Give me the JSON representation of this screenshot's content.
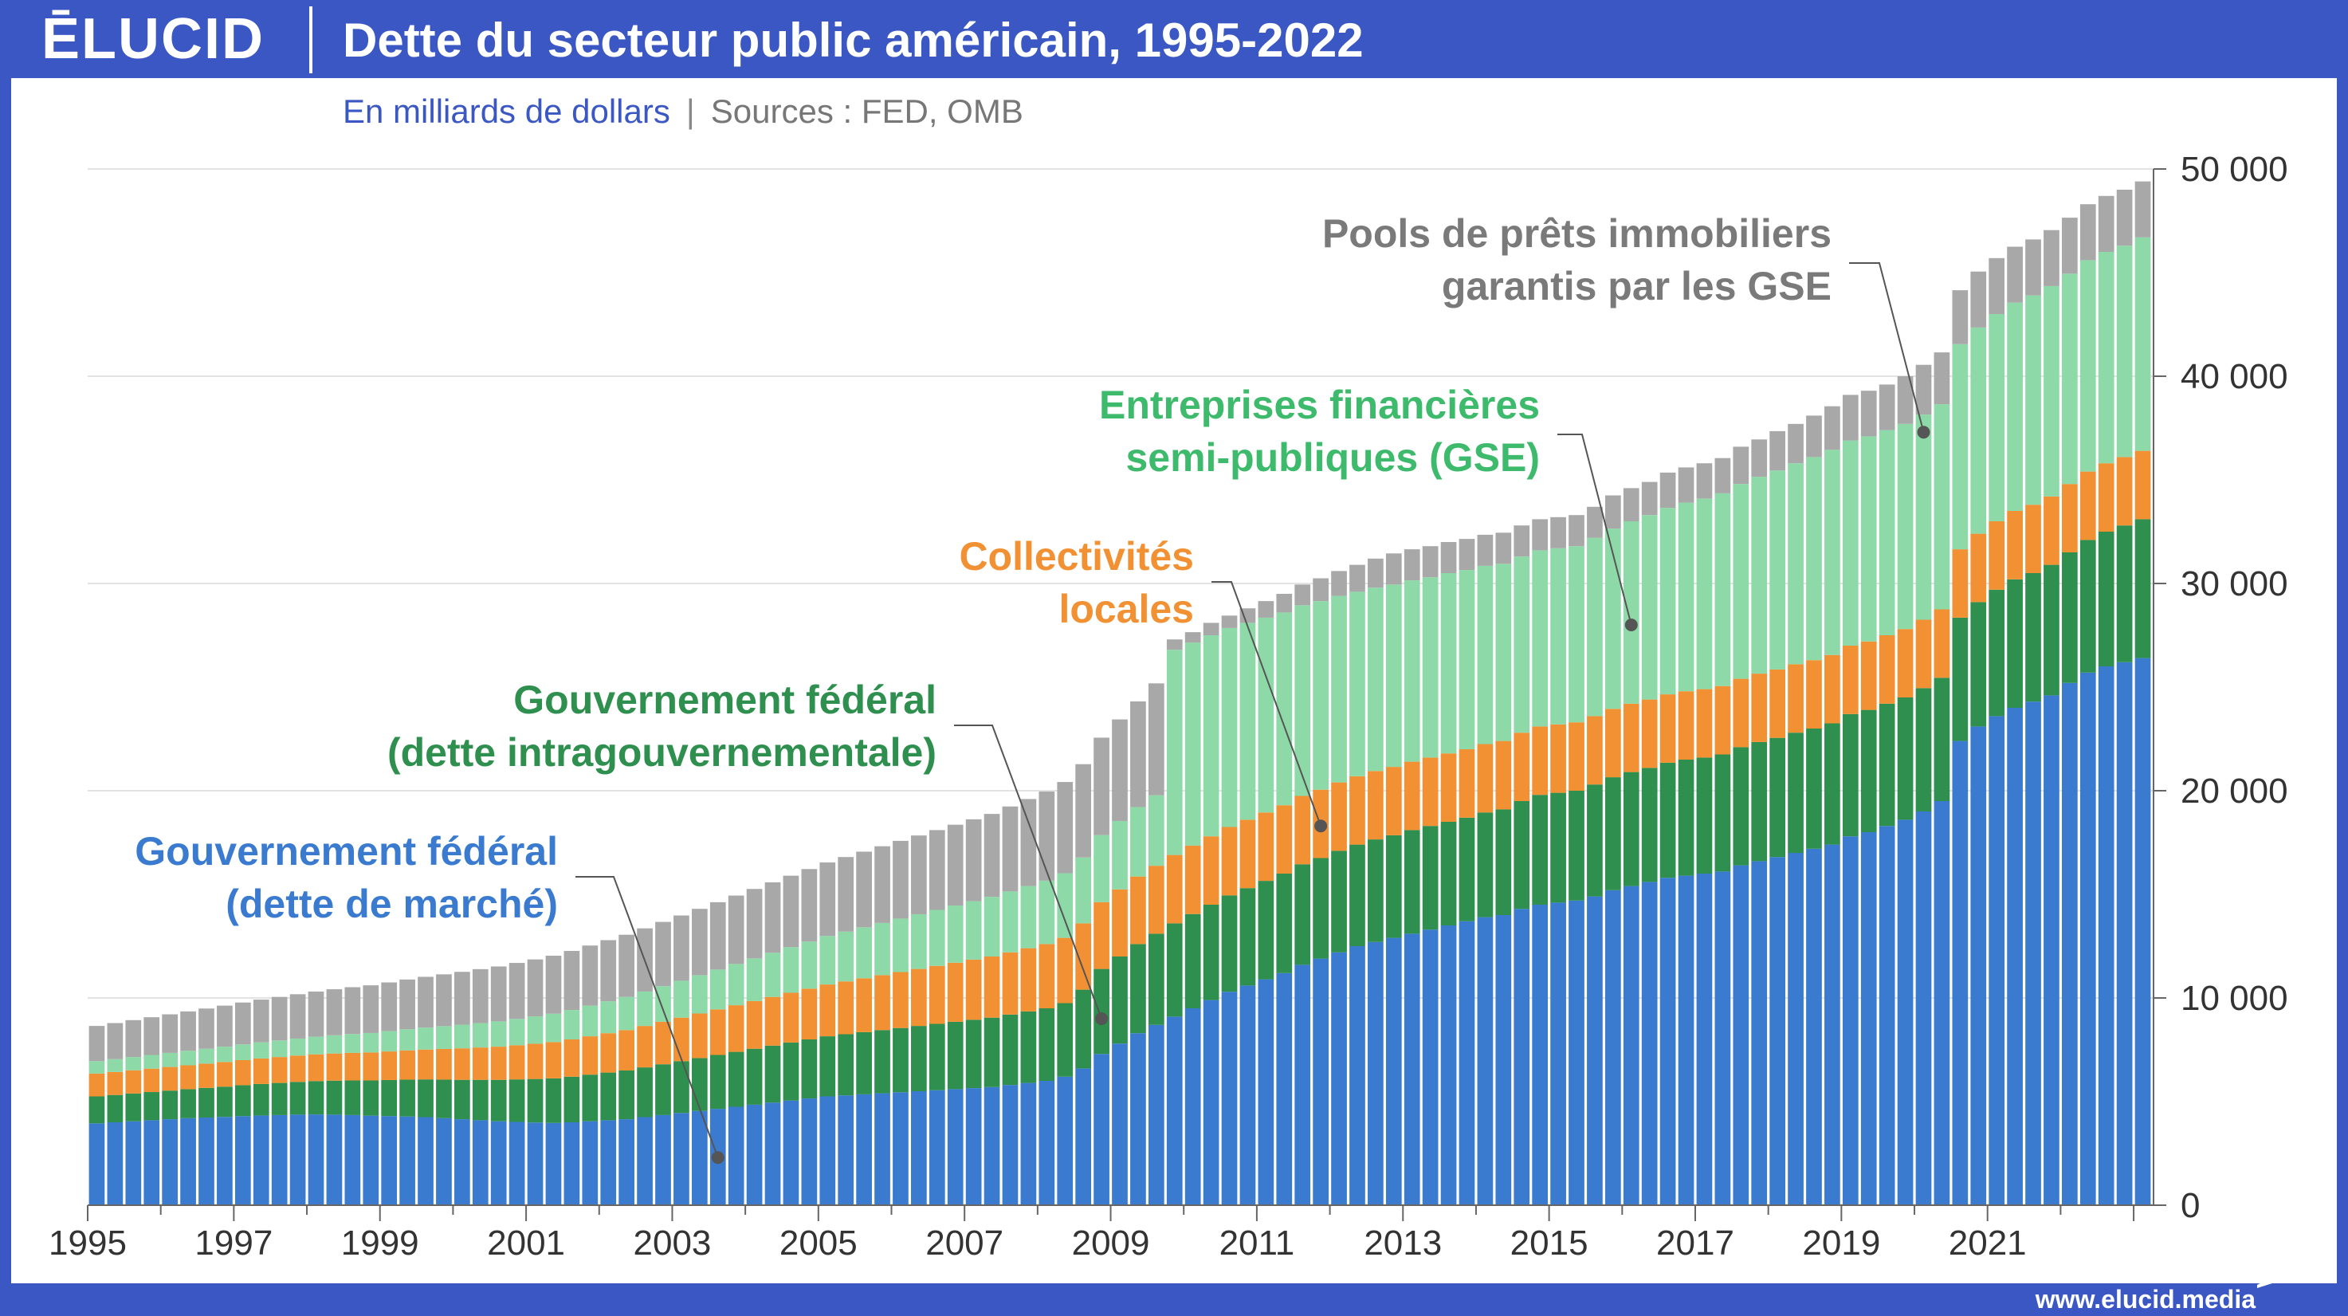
{
  "header": {
    "logo": "ĒLUCID",
    "title": "Dette du secteur public américain, 1995-2022"
  },
  "subtitle": {
    "unit": "En milliards de dollars",
    "separator": "|",
    "sources": "Sources : FED, OMB"
  },
  "footer": {
    "url": "www.elucid.media"
  },
  "colors": {
    "marche": "#3a7bd0",
    "intragouv": "#2e8f4e",
    "locales": "#f29133",
    "gse": "#8ed9a8",
    "pools": "#a8a8a8",
    "annot_marche": "#3a7bd0",
    "annot_intragouv": "#2e8f4e",
    "annot_locales": "#f29133",
    "annot_gse": "#3dba6b",
    "annot_pools": "#7a7a7a"
  },
  "chart_data": {
    "type": "bar",
    "stacked": true,
    "frequency": "quarterly",
    "start_year": 1995,
    "ylim": [
      0,
      50000
    ],
    "yticks": [
      0,
      10000,
      20000,
      30000,
      40000,
      50000
    ],
    "ytick_labels": [
      "0",
      "10 000",
      "20 000",
      "30 000",
      "40 000",
      "50 000"
    ],
    "xtick_labels": [
      "1995",
      "1997",
      "1999",
      "2001",
      "2003",
      "2005",
      "2007",
      "2009",
      "2011",
      "2013",
      "2015",
      "2017",
      "2019",
      "2021"
    ],
    "ylabel": "En milliards de dollars",
    "series": [
      {
        "name": "Gouvernement fédéral (dette de marché)",
        "values": [
          3950,
          4000,
          4050,
          4100,
          4150,
          4200,
          4230,
          4260,
          4300,
          4330,
          4350,
          4370,
          4380,
          4370,
          4350,
          4320,
          4300,
          4280,
          4250,
          4200,
          4150,
          4100,
          4050,
          4020,
          3990,
          3970,
          4000,
          4050,
          4100,
          4150,
          4250,
          4350,
          4450,
          4550,
          4650,
          4750,
          4850,
          4950,
          5050,
          5150,
          5250,
          5300,
          5350,
          5400,
          5450,
          5500,
          5550,
          5600,
          5650,
          5700,
          5800,
          5900,
          6000,
          6200,
          6600,
          7300,
          7800,
          8300,
          8700,
          9100,
          9500,
          9900,
          10300,
          10600,
          10900,
          11200,
          11600,
          11900,
          12200,
          12500,
          12700,
          12900,
          13100,
          13300,
          13500,
          13700,
          13900,
          14000,
          14300,
          14500,
          14600,
          14700,
          14900,
          15200,
          15400,
          15600,
          15800,
          15900,
          16000,
          16100,
          16400,
          16600,
          16800,
          17000,
          17200,
          17400,
          17800,
          18000,
          18300,
          18600,
          19000,
          19500,
          22400,
          23100,
          23600,
          24000,
          24300,
          24600,
          25200,
          25700,
          26000,
          26200,
          26400
        ]
      },
      {
        "name": "Gouvernement fédéral (dette intragouvernementale)",
        "values": [
          1300,
          1320,
          1340,
          1360,
          1380,
          1400,
          1430,
          1460,
          1490,
          1520,
          1550,
          1580,
          1610,
          1640,
          1670,
          1700,
          1740,
          1780,
          1820,
          1860,
          1900,
          1950,
          2000,
          2050,
          2100,
          2150,
          2200,
          2250,
          2300,
          2350,
          2400,
          2450,
          2500,
          2550,
          2600,
          2650,
          2700,
          2750,
          2800,
          2850,
          2900,
          2950,
          3000,
          3050,
          3100,
          3150,
          3200,
          3250,
          3300,
          3350,
          3400,
          3450,
          3500,
          3550,
          3800,
          4100,
          4200,
          4300,
          4400,
          4500,
          4550,
          4600,
          4650,
          4700,
          4750,
          4800,
          4850,
          4850,
          4900,
          4900,
          4950,
          4950,
          5000,
          5000,
          5000,
          5000,
          5050,
          5100,
          5200,
          5300,
          5300,
          5300,
          5400,
          5450,
          5500,
          5500,
          5550,
          5600,
          5600,
          5650,
          5700,
          5750,
          5750,
          5800,
          5800,
          5850,
          5900,
          5900,
          5900,
          5900,
          5950,
          5950,
          5950,
          6000,
          6100,
          6200,
          6200,
          6300,
          6300,
          6400,
          6500,
          6600,
          6700
        ]
      },
      {
        "name": "Collectivités locales",
        "values": [
          1100,
          1110,
          1120,
          1130,
          1140,
          1150,
          1170,
          1190,
          1210,
          1230,
          1250,
          1270,
          1290,
          1310,
          1330,
          1350,
          1380,
          1410,
          1440,
          1480,
          1520,
          1560,
          1600,
          1650,
          1700,
          1750,
          1800,
          1850,
          1900,
          1950,
          2000,
          2050,
          2100,
          2150,
          2200,
          2250,
          2300,
          2350,
          2400,
          2450,
          2500,
          2550,
          2600,
          2650,
          2700,
          2750,
          2800,
          2850,
          2900,
          2950,
          3000,
          3050,
          3100,
          3150,
          3200,
          3220,
          3240,
          3260,
          3280,
          3300,
          3300,
          3300,
          3300,
          3300,
          3300,
          3300,
          3300,
          3300,
          3300,
          3300,
          3300,
          3300,
          3300,
          3300,
          3300,
          3300,
          3300,
          3300,
          3300,
          3300,
          3300,
          3300,
          3300,
          3300,
          3300,
          3300,
          3300,
          3300,
          3300,
          3300,
          3300,
          3300,
          3300,
          3300,
          3300,
          3300,
          3300,
          3300,
          3300,
          3300,
          3300,
          3300,
          3300,
          3300,
          3300,
          3300,
          3300,
          3300,
          3300,
          3300,
          3300,
          3300,
          3300
        ]
      },
      {
        "name": "Entreprises financières semi-publiques (GSE)",
        "values": [
          600,
          620,
          640,
          660,
          680,
          700,
          720,
          740,
          760,
          780,
          800,
          820,
          850,
          880,
          910,
          940,
          980,
          1020,
          1060,
          1100,
          1140,
          1180,
          1220,
          1270,
          1320,
          1370,
          1420,
          1480,
          1540,
          1600,
          1660,
          1720,
          1780,
          1850,
          1920,
          1990,
          2060,
          2130,
          2200,
          2270,
          2340,
          2400,
          2460,
          2520,
          2580,
          2640,
          2700,
          2760,
          2820,
          2880,
          2940,
          3000,
          3060,
          3120,
          3180,
          3240,
          3300,
          3350,
          3400,
          9900,
          9800,
          9700,
          9600,
          9500,
          9400,
          9300,
          9200,
          9100,
          9000,
          8900,
          8850,
          8800,
          8750,
          8700,
          8700,
          8650,
          8600,
          8550,
          8500,
          8500,
          8500,
          8500,
          8600,
          8700,
          8800,
          8900,
          9000,
          9100,
          9200,
          9300,
          9400,
          9500,
          9600,
          9700,
          9800,
          9900,
          9900,
          9900,
          9900,
          9900,
          9900,
          9900,
          9900,
          9950,
          10000,
          10050,
          10100,
          10150,
          10150,
          10200,
          10200,
          10200,
          10300
        ]
      },
      {
        "name": "Pools de prêts immobiliers garantis par les GSE",
        "values": [
          1700,
          1740,
          1780,
          1820,
          1860,
          1900,
          1940,
          1980,
          2020,
          2060,
          2100,
          2140,
          2180,
          2220,
          2260,
          2300,
          2350,
          2400,
          2450,
          2500,
          2550,
          2600,
          2650,
          2700,
          2750,
          2800,
          2850,
          2900,
          2950,
          3000,
          3050,
          3100,
          3150,
          3200,
          3250,
          3300,
          3350,
          3400,
          3450,
          3500,
          3550,
          3600,
          3650,
          3700,
          3750,
          3800,
          3850,
          3900,
          3950,
          4000,
          4100,
          4200,
          4300,
          4400,
          4500,
          4700,
          4900,
          5100,
          5400,
          500,
          500,
          600,
          600,
          700,
          800,
          900,
          1000,
          1100,
          1200,
          1300,
          1400,
          1500,
          1500,
          1500,
          1500,
          1500,
          1500,
          1500,
          1500,
          1500,
          1500,
          1500,
          1500,
          1600,
          1600,
          1600,
          1700,
          1700,
          1700,
          1700,
          1800,
          1800,
          1900,
          1900,
          2000,
          2100,
          2200,
          2200,
          2200,
          2300,
          2400,
          2500,
          2600,
          2700,
          2700,
          2700,
          2700,
          2700,
          2700,
          2700,
          2700,
          2700,
          2700
        ]
      }
    ],
    "annotations": [
      {
        "id": "marche",
        "lines": [
          "Gouvernement fédéral",
          "(dette de marché)"
        ],
        "bar_index": 34,
        "value": 2300
      },
      {
        "id": "intragouv",
        "lines": [
          "Gouvernement fédéral",
          "(dette intragouvernementale)"
        ],
        "bar_index": 55,
        "value": 9000
      },
      {
        "id": "locales",
        "lines": [
          "Collectivités",
          "locales"
        ],
        "bar_index": 67,
        "value": 18300
      },
      {
        "id": "gse",
        "lines": [
          "Entreprises financières",
          "semi-publiques (GSE)"
        ],
        "bar_index": 84,
        "value": 28000
      },
      {
        "id": "pools",
        "lines": [
          "Pools de prêts immobiliers",
          "garantis par les GSE"
        ],
        "bar_index": 100,
        "value": 37300
      }
    ]
  }
}
